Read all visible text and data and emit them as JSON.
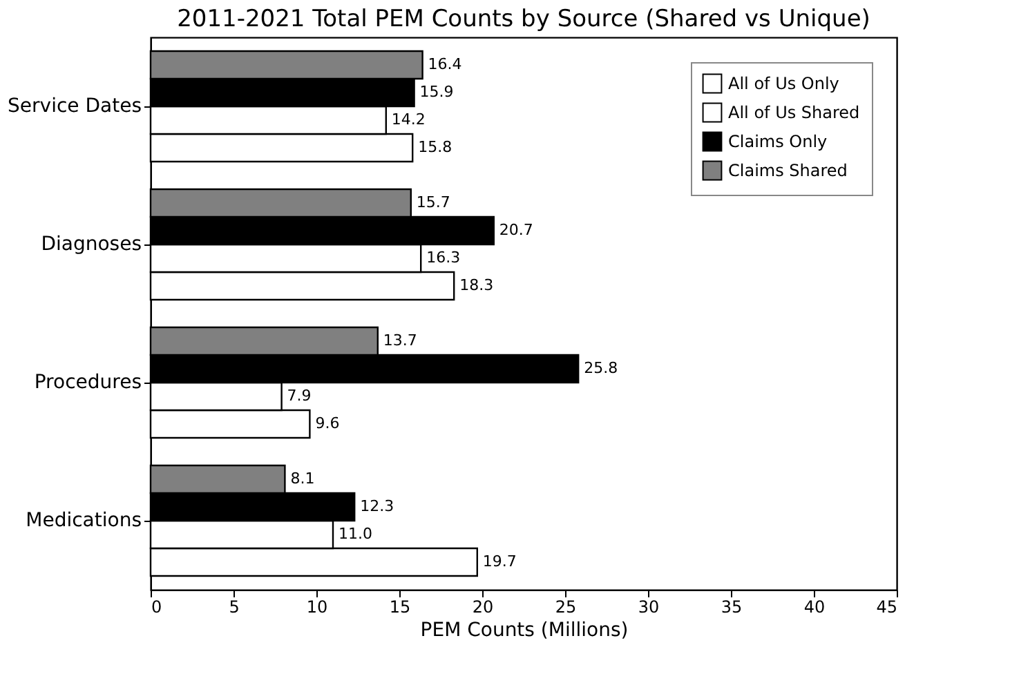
{
  "chart_data": {
    "type": "bar",
    "orientation": "horizontal",
    "title": "2011-2021 Total PEM Counts by Source (Shared vs Unique)",
    "xlabel": "PEM Counts (Millions)",
    "categories": [
      "Service Dates",
      "Diagnoses",
      "Procedures",
      "Medications"
    ],
    "series": [
      {
        "name": "All of Us Only",
        "color": "#ffffff",
        "values": [
          15.8,
          18.3,
          9.6,
          19.7
        ],
        "value_labels": [
          "15.8",
          "18.3",
          "9.6",
          "19.7"
        ]
      },
      {
        "name": "All of Us Shared",
        "color": "#ffffff",
        "values": [
          14.2,
          16.3,
          7.9,
          11.0
        ],
        "value_labels": [
          "14.2",
          "16.3",
          "7.9",
          "11.0"
        ]
      },
      {
        "name": "Claims Only",
        "color": "#000000",
        "values": [
          15.9,
          20.7,
          25.8,
          12.3
        ],
        "value_labels": [
          "15.9",
          "20.7",
          "25.8",
          "12.3"
        ]
      },
      {
        "name": "Claims Shared",
        "color": "#808080",
        "values": [
          16.4,
          15.7,
          13.7,
          8.1
        ],
        "value_labels": [
          "16.4",
          "15.7",
          "13.7",
          "8.1"
        ]
      }
    ],
    "xlim": [
      0,
      45
    ],
    "xticks": [
      0,
      5,
      10,
      15,
      20,
      25,
      30,
      35,
      40,
      45
    ],
    "grid": false,
    "legend": "top right"
  }
}
